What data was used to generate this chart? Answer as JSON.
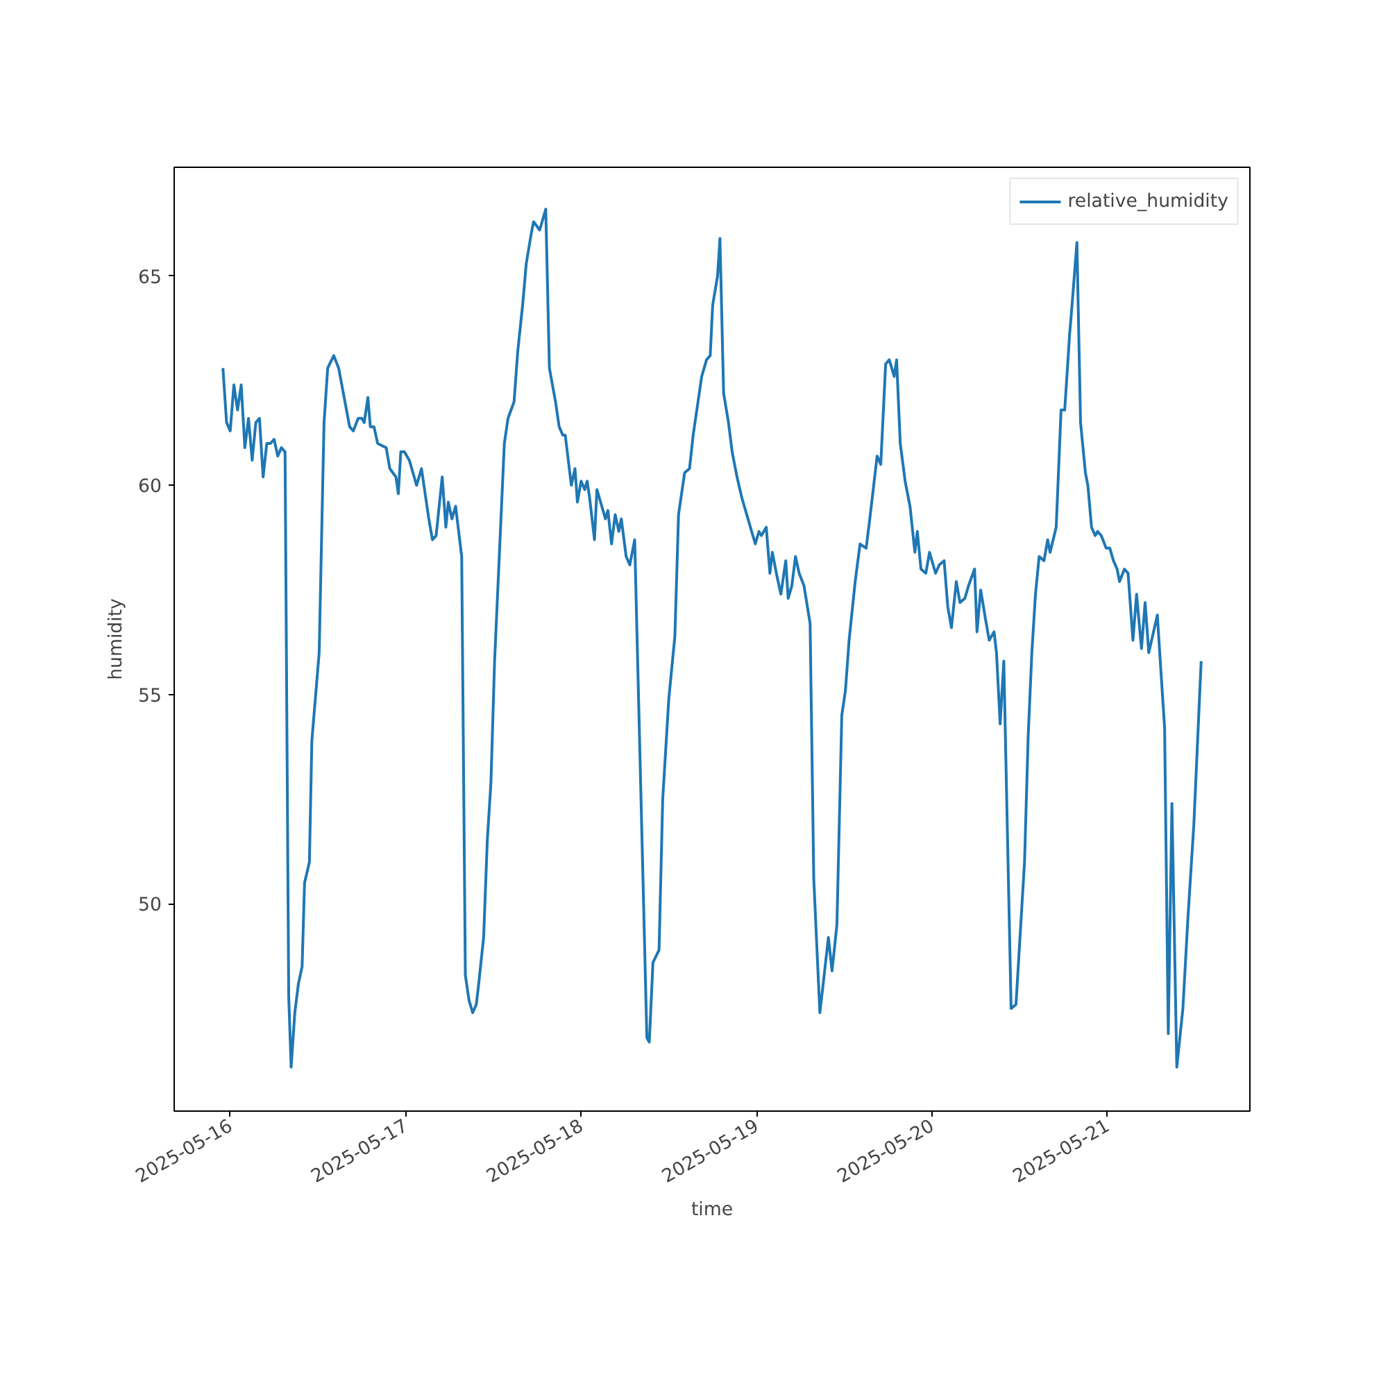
{
  "chart_data": {
    "type": "line",
    "xlabel": "time",
    "ylabel": "humidity",
    "x": [
      "2025-05-15T23:00",
      "2025-05-15T23:30",
      "2025-05-16T00:00",
      "2025-05-16T00:30",
      "2025-05-16T01:00",
      "2025-05-16T01:30",
      "2025-05-16T02:00",
      "2025-05-16T02:30",
      "2025-05-16T03:00",
      "2025-05-16T03:30",
      "2025-05-16T04:00",
      "2025-05-16T04:30",
      "2025-05-16T05:00",
      "2025-05-16T05:30",
      "2025-05-16T06:00",
      "2025-05-16T06:30",
      "2025-05-16T07:00",
      "2025-05-16T07:30",
      "2025-05-16T08:00",
      "2025-05-16T08:20",
      "2025-05-16T08:50",
      "2025-05-16T09:20",
      "2025-05-16T09:50",
      "2025-05-16T10:10",
      "2025-05-16T10:50",
      "2025-05-16T11:10",
      "2025-05-16T12:10",
      "2025-05-16T12:50",
      "2025-05-16T13:20",
      "2025-05-16T14:10",
      "2025-05-16T14:50",
      "2025-05-16T16:20",
      "2025-05-16T16:50",
      "2025-05-16T17:30",
      "2025-05-16T18:00",
      "2025-05-16T18:20",
      "2025-05-16T18:50",
      "2025-05-16T19:10",
      "2025-05-16T19:40",
      "2025-05-16T20:10",
      "2025-05-16T21:20",
      "2025-05-16T21:50",
      "2025-05-16T22:40",
      "2025-05-16T23:00",
      "2025-05-16T23:20",
      "2025-05-16T23:50",
      "2025-05-17T00:30",
      "2025-05-17T01:10",
      "2025-05-17T01:30",
      "2025-05-17T02:10",
      "2025-05-17T02:40",
      "2025-05-17T03:10",
      "2025-05-17T03:40",
      "2025-05-17T04:10",
      "2025-05-17T05:00",
      "2025-05-17T05:30",
      "2025-05-17T05:50",
      "2025-05-17T06:20",
      "2025-05-17T06:50",
      "2025-05-17T07:40",
      "2025-05-17T08:10",
      "2025-05-17T08:40",
      "2025-05-17T09:10",
      "2025-05-17T09:40",
      "2025-05-17T10:00",
      "2025-05-17T10:40",
      "2025-05-17T11:10",
      "2025-05-17T11:40",
      "2025-05-17T12:10",
      "2025-05-17T12:50",
      "2025-05-17T13:30",
      "2025-05-17T14:00",
      "2025-05-17T14:50",
      "2025-05-17T15:20",
      "2025-05-17T16:00",
      "2025-05-17T16:30",
      "2025-05-17T17:10",
      "2025-05-17T17:30",
      "2025-05-17T18:20",
      "2025-05-17T19:10",
      "2025-05-17T19:40",
      "2025-05-17T20:30",
      "2025-05-17T21:00",
      "2025-05-17T21:30",
      "2025-05-17T21:50",
      "2025-05-17T22:40",
      "2025-05-17T23:10",
      "2025-05-17T23:30",
      "2025-05-18T00:00",
      "2025-05-18T00:30",
      "2025-05-18T00:50",
      "2025-05-18T01:10",
      "2025-05-18T01:50",
      "2025-05-18T02:10",
      "2025-05-18T02:40",
      "2025-05-18T03:20",
      "2025-05-18T03:40",
      "2025-05-18T04:10",
      "2025-05-18T04:40",
      "2025-05-18T05:10",
      "2025-05-18T05:30",
      "2025-05-18T06:10",
      "2025-05-18T06:40",
      "2025-05-18T07:20",
      "2025-05-18T09:00",
      "2025-05-18T09:20",
      "2025-05-18T09:50",
      "2025-05-18T10:40",
      "2025-05-18T11:10",
      "2025-05-18T12:00",
      "2025-05-18T12:50",
      "2025-05-18T13:20",
      "2025-05-18T14:10",
      "2025-05-18T14:50",
      "2025-05-18T15:20",
      "2025-05-18T16:00",
      "2025-05-18T16:30",
      "2025-05-18T17:10",
      "2025-05-18T17:40",
      "2025-05-18T18:00",
      "2025-05-18T18:40",
      "2025-05-18T19:00",
      "2025-05-18T19:30",
      "2025-05-18T20:10",
      "2025-05-18T20:40",
      "2025-05-18T21:20",
      "2025-05-18T22:00",
      "2025-05-18T22:50",
      "2025-05-18T23:50",
      "2025-05-19T00:20",
      "2025-05-19T00:40",
      "2025-05-19T01:20",
      "2025-05-19T01:50",
      "2025-05-19T02:10",
      "2025-05-19T02:50",
      "2025-05-19T03:20",
      "2025-05-19T04:00",
      "2025-05-19T04:20",
      "2025-05-19T04:50",
      "2025-05-19T05:20",
      "2025-05-19T05:50",
      "2025-05-19T06:30",
      "2025-05-19T07:20",
      "2025-05-19T07:50",
      "2025-05-19T08:40",
      "2025-05-19T09:00",
      "2025-05-19T09:50",
      "2025-05-19T10:20",
      "2025-05-19T11:00",
      "2025-05-19T11:40",
      "2025-05-19T12:10",
      "2025-05-19T12:40",
      "2025-05-19T13:30",
      "2025-05-19T14:10",
      "2025-05-19T15:00",
      "2025-05-19T15:30",
      "2025-05-19T16:30",
      "2025-05-19T17:00",
      "2025-05-19T17:40",
      "2025-05-19T18:10",
      "2025-05-19T18:50",
      "2025-05-19T19:10",
      "2025-05-19T19:40",
      "2025-05-19T20:20",
      "2025-05-19T21:00",
      "2025-05-19T21:40",
      "2025-05-19T22:00",
      "2025-05-19T22:30",
      "2025-05-19T23:10",
      "2025-05-19T23:40",
      "2025-05-20T00:30",
      "2025-05-20T01:00",
      "2025-05-20T01:40",
      "2025-05-20T02:10",
      "2025-05-20T02:40",
      "2025-05-20T03:20",
      "2025-05-20T03:50",
      "2025-05-20T04:30",
      "2025-05-20T05:00",
      "2025-05-20T05:50",
      "2025-05-20T06:10",
      "2025-05-20T06:40",
      "2025-05-20T07:20",
      "2025-05-20T07:50",
      "2025-05-20T08:30",
      "2025-05-20T08:50",
      "2025-05-20T09:20",
      "2025-05-20T09:50",
      "2025-05-20T10:50",
      "2025-05-20T11:30",
      "2025-05-20T12:40",
      "2025-05-20T13:10",
      "2025-05-20T13:40",
      "2025-05-20T14:10",
      "2025-05-20T14:40",
      "2025-05-20T15:20",
      "2025-05-20T15:50",
      "2025-05-20T16:10",
      "2025-05-20T17:00",
      "2025-05-20T17:40",
      "2025-05-20T18:10",
      "2025-05-20T18:50",
      "2025-05-20T19:10",
      "2025-05-20T19:50",
      "2025-05-20T20:20",
      "2025-05-20T21:00",
      "2025-05-20T21:20",
      "2025-05-20T21:50",
      "2025-05-20T22:20",
      "2025-05-20T22:40",
      "2025-05-20T23:10",
      "2025-05-20T23:50",
      "2025-05-21T00:20",
      "2025-05-21T00:50",
      "2025-05-21T01:20",
      "2025-05-21T01:40",
      "2025-05-21T02:20",
      "2025-05-21T02:50",
      "2025-05-21T03:30",
      "2025-05-21T04:00",
      "2025-05-21T04:40",
      "2025-05-21T05:10",
      "2025-05-21T05:40",
      "2025-05-21T06:50",
      "2025-05-21T07:50",
      "2025-05-21T08:20",
      "2025-05-21T08:50",
      "2025-05-21T09:30",
      "2025-05-21T10:20",
      "2025-05-21T11:00",
      "2025-05-21T11:50",
      "2025-05-21T12:50"
    ],
    "series": [
      {
        "name": "relative_humidity",
        "color": "#1f77b4",
        "values": [
          62.8,
          61.5,
          61.3,
          62.4,
          61.8,
          62.4,
          60.9,
          61.6,
          60.6,
          61.5,
          61.6,
          60.2,
          61.0,
          61.0,
          61.1,
          60.7,
          60.9,
          60.8,
          47.8,
          46.1,
          47.4,
          48.1,
          48.5,
          50.5,
          51.0,
          53.9,
          56.0,
          61.5,
          62.8,
          63.1,
          62.8,
          61.4,
          61.3,
          61.6,
          61.6,
          61.5,
          62.1,
          61.4,
          61.4,
          61.0,
          60.9,
          60.4,
          60.2,
          59.8,
          60.8,
          60.8,
          60.6,
          60.2,
          60.0,
          60.4,
          59.8,
          59.2,
          58.7,
          58.8,
          60.2,
          59.0,
          59.6,
          59.2,
          59.5,
          58.3,
          48.3,
          47.7,
          47.4,
          47.6,
          48.1,
          49.2,
          51.5,
          52.9,
          55.8,
          58.4,
          61.0,
          61.6,
          62.0,
          63.2,
          64.3,
          65.3,
          66.0,
          66.3,
          66.1,
          66.6,
          62.8,
          62.0,
          61.4,
          61.2,
          61.2,
          60.0,
          60.4,
          59.6,
          60.1,
          59.9,
          60.1,
          59.7,
          58.7,
          59.9,
          59.6,
          59.2,
          59.4,
          58.6,
          59.3,
          58.9,
          59.2,
          58.3,
          58.1,
          58.7,
          46.8,
          46.7,
          48.6,
          48.9,
          52.5,
          54.9,
          56.4,
          59.3,
          60.3,
          60.4,
          61.2,
          62.0,
          62.6,
          63.0,
          63.1,
          64.3,
          65.0,
          65.9,
          62.2,
          61.5,
          60.8,
          60.2,
          59.7,
          59.2,
          58.6,
          58.9,
          58.8,
          59.0,
          57.9,
          58.4,
          57.8,
          57.4,
          58.2,
          57.3,
          57.6,
          58.3,
          57.9,
          57.6,
          56.7,
          50.6,
          47.4,
          47.9,
          49.2,
          48.4,
          49.5,
          54.5,
          55.1,
          56.3,
          57.7,
          58.6,
          58.5,
          59.2,
          60.7,
          60.5,
          62.9,
          63.0,
          62.6,
          63.0,
          61.0,
          60.1,
          59.5,
          58.4,
          58.9,
          58.0,
          57.9,
          58.4,
          57.9,
          58.1,
          58.2,
          57.1,
          56.6,
          57.7,
          57.2,
          57.3,
          57.6,
          58.0,
          56.5,
          57.5,
          56.8,
          56.3,
          56.5,
          56.0,
          54.3,
          55.8,
          47.5,
          47.6,
          51.0,
          54.0,
          56.0,
          57.4,
          58.3,
          58.2,
          58.7,
          58.4,
          59.0,
          61.8,
          61.8,
          63.6,
          64.3,
          65.8,
          61.5,
          60.3,
          60.0,
          59.0,
          58.8,
          58.9,
          58.8,
          58.5,
          58.5,
          58.2,
          58.0,
          57.7,
          58.0,
          57.9,
          56.3,
          57.4,
          56.1,
          57.2,
          56.0,
          56.9,
          54.2,
          46.9,
          52.4,
          46.1,
          47.5,
          49.6,
          51.9,
          55.8
        ]
      }
    ],
    "xlim": [
      "2025-05-15T16:20",
      "2025-05-21T19:30"
    ],
    "xticks": [
      "2025-05-16",
      "2025-05-17",
      "2025-05-18",
      "2025-05-19",
      "2025-05-20",
      "2025-05-21"
    ],
    "ylim": [
      45.05,
      67.6
    ],
    "yticks": [
      50,
      55,
      60,
      65
    ],
    "legend": "top right",
    "grid": false,
    "marker": "none",
    "line_style": "solid"
  }
}
